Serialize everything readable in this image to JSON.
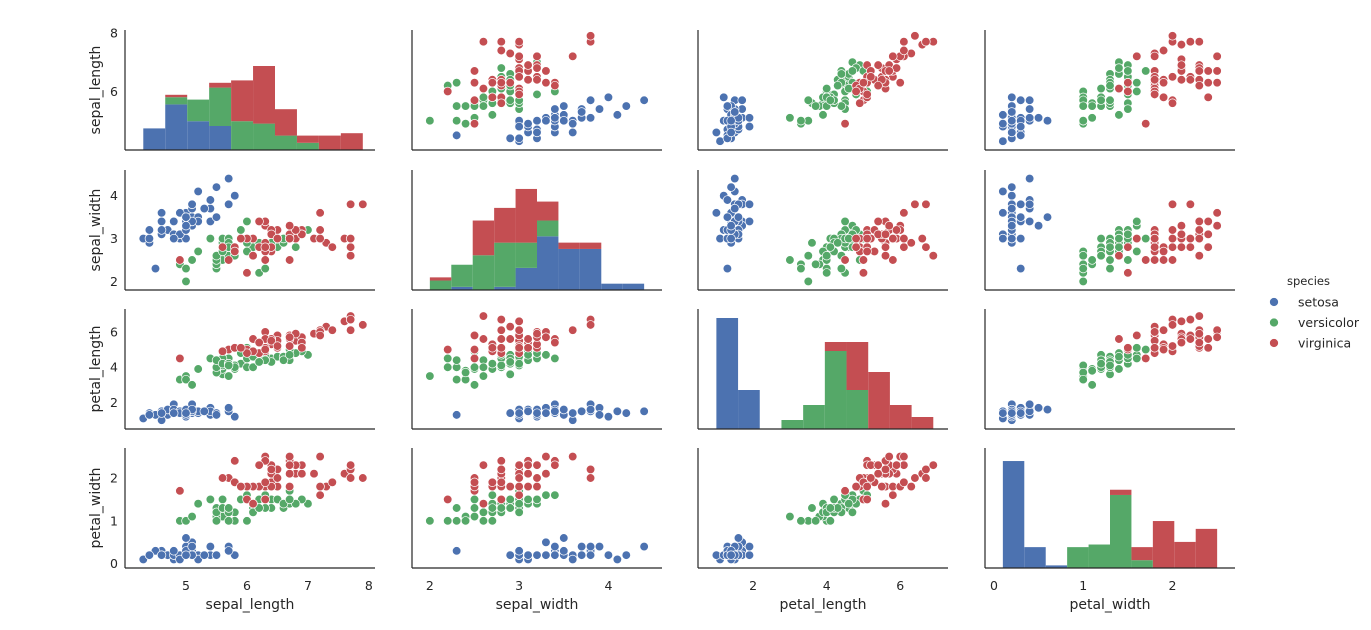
{
  "chart_data": {
    "type": "scatter",
    "title": "",
    "variables": [
      "sepal_length",
      "sepal_width",
      "petal_length",
      "petal_width"
    ],
    "diagonal_type": "bar",
    "axis_ranges": {
      "sepal_length": [
        4.0,
        8.1
      ],
      "sepal_width": [
        1.8,
        4.6
      ],
      "petal_length": [
        0.5,
        7.3
      ],
      "petal_width": [
        -0.1,
        2.7
      ]
    },
    "ticks": {
      "sepal_length": {
        "values": [
          5,
          6,
          7,
          8
        ],
        "labels": [
          "5",
          "6",
          "7",
          "8"
        ]
      },
      "sepal_width": {
        "values": [
          2,
          3,
          4
        ],
        "labels": [
          "2",
          "3",
          "4"
        ]
      },
      "petal_length": {
        "values": [
          2,
          4,
          6
        ],
        "labels": [
          "2",
          "4",
          "6"
        ]
      },
      "petal_width": {
        "values": [
          0,
          1,
          2
        ],
        "labels": [
          "0",
          "1",
          "2"
        ]
      }
    },
    "row_ticks": {
      "sepal_length": {
        "values": [
          6,
          8
        ],
        "labels": [
          "6",
          "8"
        ]
      },
      "sepal_width": {
        "values": [
          2,
          3,
          4
        ],
        "labels": [
          "2",
          "3",
          "4"
        ]
      },
      "petal_length": {
        "values": [
          2,
          4,
          6
        ],
        "labels": [
          "2",
          "4",
          "6"
        ]
      },
      "petal_width": {
        "values": [
          0,
          1,
          2
        ],
        "labels": [
          "0",
          "1",
          "2"
        ]
      }
    },
    "legend": {
      "title": "species",
      "position": "right",
      "entries": [
        {
          "label": "setosa",
          "color": "#4c72b0"
        },
        {
          "label": "versicolor",
          "color": "#55a868"
        },
        {
          "label": "virginica",
          "color": "#c44e52"
        }
      ]
    },
    "colors": {
      "setosa": "#4c72b0",
      "versicolor": "#55a868",
      "virginica": "#c44e52"
    },
    "species": [
      "setosa",
      "versicolor",
      "virginica"
    ],
    "histograms": {
      "sepal_length": {
        "bins": [
          4.3,
          4.66,
          5.02,
          5.38,
          5.74,
          6.1,
          6.46,
          6.82,
          7.18,
          7.54,
          7.9
        ],
        "ymax": 50,
        "counts": {
          "setosa": [
            9,
            19,
            12,
            10,
            0,
            0,
            0,
            0,
            0,
            0
          ],
          "versicolor": [
            0,
            3,
            9,
            16,
            12,
            11,
            6,
            3,
            0,
            0
          ],
          "virginica": [
            0,
            1,
            0,
            2,
            17,
            24,
            11,
            3,
            6,
            7
          ]
        }
      },
      "sepal_width": {
        "bins": [
          2.0,
          2.24,
          2.48,
          2.72,
          2.96,
          3.2,
          3.44,
          3.68,
          3.92,
          4.16,
          4.4
        ],
        "ymax": 38,
        "counts": {
          "setosa": [
            0,
            1,
            0,
            1,
            7,
            17,
            13,
            13,
            2,
            2
          ],
          "versicolor": [
            3,
            7,
            11,
            14,
            8,
            5,
            0,
            0,
            0,
            0
          ],
          "virginica": [
            1,
            0,
            11,
            11,
            17,
            6,
            2,
            2,
            0,
            0
          ]
        }
      },
      "petal_length": {
        "bins": [
          1.0,
          1.59,
          2.18,
          2.77,
          3.36,
          3.95,
          4.54,
          5.13,
          5.72,
          6.31,
          6.9
        ],
        "ymax": 40,
        "counts": {
          "setosa": [
            37,
            13,
            0,
            0,
            0,
            0,
            0,
            0,
            0,
            0
          ],
          "versicolor": [
            0,
            0,
            0,
            3,
            8,
            26,
            13,
            0,
            0,
            0
          ],
          "virginica": [
            0,
            0,
            0,
            0,
            0,
            3,
            16,
            19,
            8,
            4
          ]
        }
      },
      "petal_width": {
        "bins": [
          0.1,
          0.34,
          0.58,
          0.82,
          1.06,
          1.3,
          1.54,
          1.78,
          2.02,
          2.26,
          2.5
        ],
        "ymax": 46,
        "counts": {
          "setosa": [
            41,
            8,
            1,
            0,
            0,
            0,
            0,
            0,
            0,
            0
          ],
          "versicolor": [
            0,
            0,
            0,
            8,
            9,
            28,
            3,
            0,
            0,
            0
          ],
          "virginica": [
            0,
            0,
            0,
            0,
            0,
            2,
            5,
            18,
            10,
            15
          ]
        }
      }
    },
    "points": {
      "setosa": [
        [
          5.1,
          3.5,
          1.4,
          0.2
        ],
        [
          4.9,
          3.0,
          1.4,
          0.2
        ],
        [
          4.7,
          3.2,
          1.3,
          0.2
        ],
        [
          4.6,
          3.1,
          1.5,
          0.2
        ],
        [
          5.0,
          3.6,
          1.4,
          0.2
        ],
        [
          5.4,
          3.9,
          1.7,
          0.4
        ],
        [
          4.6,
          3.4,
          1.4,
          0.3
        ],
        [
          5.0,
          3.4,
          1.5,
          0.2
        ],
        [
          4.4,
          2.9,
          1.4,
          0.2
        ],
        [
          4.9,
          3.1,
          1.5,
          0.1
        ],
        [
          5.4,
          3.7,
          1.5,
          0.2
        ],
        [
          4.8,
          3.4,
          1.6,
          0.2
        ],
        [
          4.8,
          3.0,
          1.4,
          0.1
        ],
        [
          4.3,
          3.0,
          1.1,
          0.1
        ],
        [
          5.8,
          4.0,
          1.2,
          0.2
        ],
        [
          5.7,
          4.4,
          1.5,
          0.4
        ],
        [
          5.4,
          3.9,
          1.3,
          0.4
        ],
        [
          5.1,
          3.5,
          1.4,
          0.3
        ],
        [
          5.7,
          3.8,
          1.7,
          0.3
        ],
        [
          5.1,
          3.8,
          1.5,
          0.3
        ],
        [
          5.4,
          3.4,
          1.7,
          0.2
        ],
        [
          5.1,
          3.7,
          1.5,
          0.4
        ],
        [
          4.6,
          3.6,
          1.0,
          0.2
        ],
        [
          5.1,
          3.3,
          1.7,
          0.5
        ],
        [
          4.8,
          3.4,
          1.9,
          0.2
        ],
        [
          5.0,
          3.0,
          1.6,
          0.2
        ],
        [
          5.0,
          3.4,
          1.6,
          0.4
        ],
        [
          5.2,
          3.5,
          1.5,
          0.2
        ],
        [
          5.2,
          3.4,
          1.4,
          0.2
        ],
        [
          4.7,
          3.2,
          1.6,
          0.2
        ],
        [
          4.8,
          3.1,
          1.6,
          0.2
        ],
        [
          5.4,
          3.4,
          1.5,
          0.4
        ],
        [
          5.2,
          4.1,
          1.5,
          0.1
        ],
        [
          5.5,
          4.2,
          1.4,
          0.2
        ],
        [
          4.9,
          3.1,
          1.5,
          0.2
        ],
        [
          5.0,
          3.2,
          1.2,
          0.2
        ],
        [
          5.5,
          3.5,
          1.3,
          0.2
        ],
        [
          4.9,
          3.6,
          1.4,
          0.1
        ],
        [
          4.4,
          3.0,
          1.3,
          0.2
        ],
        [
          5.1,
          3.4,
          1.5,
          0.2
        ],
        [
          5.0,
          3.5,
          1.3,
          0.3
        ],
        [
          4.5,
          2.3,
          1.3,
          0.3
        ],
        [
          4.4,
          3.2,
          1.3,
          0.2
        ],
        [
          5.0,
          3.5,
          1.6,
          0.6
        ],
        [
          5.1,
          3.8,
          1.9,
          0.4
        ],
        [
          4.8,
          3.0,
          1.4,
          0.3
        ],
        [
          5.1,
          3.8,
          1.6,
          0.2
        ],
        [
          4.6,
          3.2,
          1.4,
          0.2
        ],
        [
          5.3,
          3.7,
          1.5,
          0.2
        ],
        [
          5.0,
          3.3,
          1.4,
          0.2
        ]
      ],
      "versicolor": [
        [
          7.0,
          3.2,
          4.7,
          1.4
        ],
        [
          6.4,
          3.2,
          4.5,
          1.5
        ],
        [
          6.9,
          3.1,
          4.9,
          1.5
        ],
        [
          5.5,
          2.3,
          4.0,
          1.3
        ],
        [
          6.5,
          2.8,
          4.6,
          1.5
        ],
        [
          5.7,
          2.8,
          4.5,
          1.3
        ],
        [
          6.3,
          3.3,
          4.7,
          1.6
        ],
        [
          4.9,
          2.4,
          3.3,
          1.0
        ],
        [
          6.6,
          2.9,
          4.6,
          1.3
        ],
        [
          5.2,
          2.7,
          3.9,
          1.4
        ],
        [
          5.0,
          2.0,
          3.5,
          1.0
        ],
        [
          5.9,
          3.0,
          4.2,
          1.5
        ],
        [
          6.0,
          2.2,
          4.0,
          1.0
        ],
        [
          6.1,
          2.9,
          4.7,
          1.4
        ],
        [
          5.6,
          2.9,
          3.6,
          1.3
        ],
        [
          6.7,
          3.1,
          4.4,
          1.4
        ],
        [
          5.6,
          3.0,
          4.5,
          1.5
        ],
        [
          5.8,
          2.7,
          4.1,
          1.0
        ],
        [
          6.2,
          2.2,
          4.5,
          1.5
        ],
        [
          5.6,
          2.5,
          3.9,
          1.1
        ],
        [
          5.9,
          3.2,
          4.8,
          1.8
        ],
        [
          6.1,
          2.8,
          4.0,
          1.3
        ],
        [
          6.3,
          2.5,
          4.9,
          1.5
        ],
        [
          6.1,
          2.8,
          4.7,
          1.2
        ],
        [
          6.4,
          2.9,
          4.3,
          1.3
        ],
        [
          6.6,
          3.0,
          4.4,
          1.4
        ],
        [
          6.8,
          2.8,
          4.8,
          1.4
        ],
        [
          6.7,
          3.0,
          5.0,
          1.7
        ],
        [
          6.0,
          2.9,
          4.5,
          1.5
        ],
        [
          5.7,
          2.6,
          3.5,
          1.0
        ],
        [
          5.5,
          2.4,
          3.8,
          1.1
        ],
        [
          5.5,
          2.4,
          3.7,
          1.0
        ],
        [
          5.8,
          2.7,
          3.9,
          1.2
        ],
        [
          6.0,
          2.7,
          5.1,
          1.6
        ],
        [
          5.4,
          3.0,
          4.5,
          1.5
        ],
        [
          6.0,
          3.4,
          4.5,
          1.6
        ],
        [
          6.7,
          3.1,
          4.7,
          1.5
        ],
        [
          6.3,
          2.3,
          4.4,
          1.3
        ],
        [
          5.6,
          3.0,
          4.1,
          1.3
        ],
        [
          5.5,
          2.5,
          4.0,
          1.3
        ],
        [
          5.5,
          2.6,
          4.4,
          1.2
        ],
        [
          6.1,
          3.0,
          4.6,
          1.4
        ],
        [
          5.8,
          2.6,
          4.0,
          1.2
        ],
        [
          5.0,
          2.3,
          3.3,
          1.0
        ],
        [
          5.6,
          2.7,
          4.2,
          1.3
        ],
        [
          5.7,
          3.0,
          4.2,
          1.2
        ],
        [
          5.7,
          2.9,
          4.2,
          1.3
        ],
        [
          6.2,
          2.9,
          4.3,
          1.3
        ],
        [
          5.1,
          2.5,
          3.0,
          1.1
        ],
        [
          5.7,
          2.8,
          4.1,
          1.3
        ]
      ],
      "virginica": [
        [
          6.3,
          3.3,
          6.0,
          2.5
        ],
        [
          5.8,
          2.7,
          5.1,
          1.9
        ],
        [
          7.1,
          3.0,
          5.9,
          2.1
        ],
        [
          6.3,
          2.9,
          5.6,
          1.8
        ],
        [
          6.5,
          3.0,
          5.8,
          2.2
        ],
        [
          7.6,
          3.0,
          6.6,
          2.1
        ],
        [
          4.9,
          2.5,
          4.5,
          1.7
        ],
        [
          7.3,
          2.9,
          6.3,
          1.8
        ],
        [
          6.7,
          2.5,
          5.8,
          1.8
        ],
        [
          7.2,
          3.6,
          6.1,
          2.5
        ],
        [
          6.5,
          3.2,
          5.1,
          2.0
        ],
        [
          6.4,
          2.7,
          5.3,
          1.9
        ],
        [
          6.8,
          3.0,
          5.5,
          2.1
        ],
        [
          5.7,
          2.5,
          5.0,
          2.0
        ],
        [
          5.8,
          2.8,
          5.1,
          2.4
        ],
        [
          6.4,
          3.2,
          5.3,
          2.3
        ],
        [
          6.5,
          3.0,
          5.5,
          1.8
        ],
        [
          7.7,
          3.8,
          6.7,
          2.2
        ],
        [
          7.7,
          2.6,
          6.9,
          2.3
        ],
        [
          6.0,
          2.2,
          5.0,
          1.5
        ],
        [
          6.9,
          3.2,
          5.7,
          2.3
        ],
        [
          5.6,
          2.8,
          4.9,
          2.0
        ],
        [
          7.7,
          2.8,
          6.7,
          2.0
        ],
        [
          6.3,
          2.7,
          4.9,
          1.8
        ],
        [
          6.7,
          3.3,
          5.7,
          2.1
        ],
        [
          7.2,
          3.2,
          6.0,
          1.8
        ],
        [
          6.2,
          2.8,
          4.8,
          1.8
        ],
        [
          6.1,
          3.0,
          4.9,
          1.8
        ],
        [
          6.4,
          2.8,
          5.6,
          2.1
        ],
        [
          7.2,
          3.0,
          5.8,
          1.6
        ],
        [
          7.4,
          2.8,
          6.1,
          1.9
        ],
        [
          7.9,
          3.8,
          6.4,
          2.0
        ],
        [
          6.4,
          2.8,
          5.6,
          2.2
        ],
        [
          6.3,
          2.8,
          5.1,
          1.5
        ],
        [
          6.1,
          2.6,
          5.6,
          1.4
        ],
        [
          7.7,
          3.0,
          6.1,
          2.3
        ],
        [
          6.3,
          3.4,
          5.6,
          2.4
        ],
        [
          6.4,
          3.1,
          5.5,
          1.8
        ],
        [
          6.0,
          3.0,
          4.8,
          1.8
        ],
        [
          6.9,
          3.1,
          5.4,
          2.1
        ],
        [
          6.7,
          3.1,
          5.6,
          2.4
        ],
        [
          6.9,
          3.1,
          5.1,
          2.3
        ],
        [
          5.8,
          2.7,
          5.1,
          1.9
        ],
        [
          6.8,
          3.2,
          5.9,
          2.3
        ],
        [
          6.7,
          3.3,
          5.7,
          2.5
        ],
        [
          6.7,
          3.0,
          5.2,
          2.3
        ],
        [
          6.3,
          2.5,
          5.0,
          1.9
        ],
        [
          6.5,
          3.0,
          5.2,
          2.0
        ],
        [
          6.2,
          3.4,
          5.4,
          2.3
        ],
        [
          5.9,
          3.0,
          5.1,
          1.8
        ]
      ]
    }
  }
}
